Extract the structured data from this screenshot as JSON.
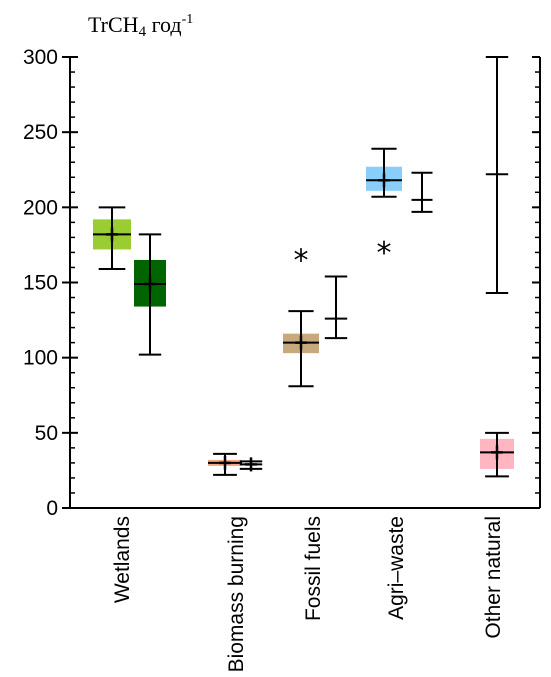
{
  "unit": {
    "base": "TrCH",
    "sub": "4",
    "suffix": " год",
    "sup": "-1"
  },
  "chart_data": {
    "type": "box",
    "ylim": [
      0,
      300
    ],
    "yticks": [
      0,
      50,
      100,
      150,
      200,
      250,
      300
    ],
    "categories": [
      "Wetlands",
      "Biomass burning",
      "Fossil fuels",
      "Agri–waste",
      "Other natural"
    ],
    "groups": [
      {
        "category": "Wetlands",
        "boxes": [
          {
            "min": 159,
            "q1": 172,
            "median": 182,
            "mean": 182,
            "q3": 192,
            "max": 200,
            "color": "#9acd32"
          },
          {
            "min": 102,
            "q1": 134,
            "median": 149,
            "mean": 149,
            "q3": 165,
            "max": 182,
            "color": "#006400"
          }
        ]
      },
      {
        "category": "Biomass burning",
        "boxes": [
          {
            "min": 22,
            "q1": 28,
            "median": 30,
            "mean": 30,
            "q3": 32,
            "max": 36,
            "color": "#f4a582"
          },
          {
            "min": 26,
            "q1": 28,
            "median": 29,
            "mean": 29,
            "q3": 30,
            "max": 31,
            "color": null
          }
        ]
      },
      {
        "category": "Fossil fuels",
        "boxes": [
          {
            "min": 81,
            "q1": 103,
            "median": 110,
            "mean": 110,
            "q3": 116,
            "max": 131,
            "color": "#c8a97e",
            "outlier": 170
          },
          {
            "min": 113,
            "q1": 113,
            "median": 126,
            "mean": null,
            "q3": 154,
            "max": 154,
            "color": null
          }
        ]
      },
      {
        "category": "Agri–waste",
        "boxes": [
          {
            "min": 207,
            "q1": 211,
            "median": 218,
            "mean": 218,
            "q3": 227,
            "max": 239,
            "color": "#87cefa",
            "outlier": 175
          },
          {
            "min": 197,
            "q1": 197,
            "median": 205,
            "mean": null,
            "q3": 223,
            "max": 223,
            "color": null
          }
        ]
      },
      {
        "category": "Other natural",
        "boxes": [
          {
            "min": 21,
            "q1": 26,
            "median": 37,
            "mean": 37,
            "q3": 46,
            "max": 50,
            "color": "#ffb6c1"
          },
          {
            "min": 143,
            "q1": 143,
            "median": 222,
            "mean": null,
            "q3": 300,
            "max": 300,
            "color": null
          }
        ]
      }
    ]
  }
}
